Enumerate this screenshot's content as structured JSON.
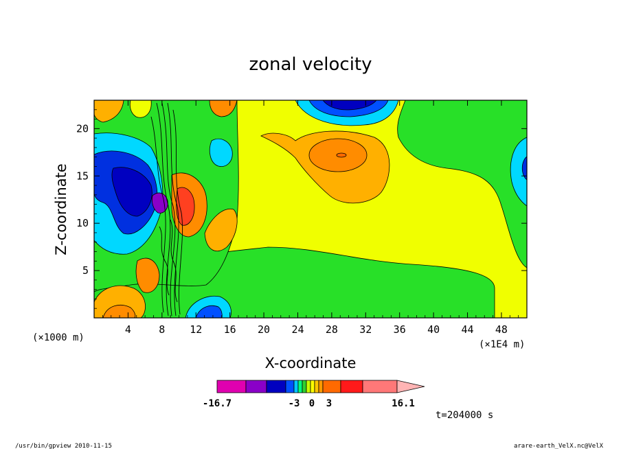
{
  "chart_data": {
    "type": "heatmap",
    "title": "zonal velocity",
    "xlabel": "X-coordinate",
    "ylabel": "Z-coordinate",
    "x_unit_left": "(×1000 m)",
    "x_unit_right": "(×1E4 m)",
    "xlim": [
      0,
      51
    ],
    "ylim": [
      0,
      23
    ],
    "x_ticks": [
      4,
      8,
      12,
      16,
      20,
      24,
      28,
      32,
      36,
      40,
      44,
      48
    ],
    "y_ticks": [
      5,
      10,
      15,
      20
    ],
    "x_tick_labels": [
      "4",
      "8",
      "12",
      "16",
      "20",
      "24",
      "28",
      "32",
      "36",
      "40",
      "44",
      "48"
    ],
    "y_tick_labels": [
      "5",
      "10",
      "15",
      "20"
    ],
    "colorbar": {
      "min_label": "-16.7",
      "max_label": "16.1",
      "mid_labels": [
        "-3",
        "0",
        "3"
      ],
      "colors": [
        "#e000b0",
        "#8a00c8",
        "#0000c0",
        "#0050ff",
        "#00c8ff",
        "#00ff7f",
        "#30d030",
        "#c8ff00",
        "#ffff00",
        "#ffc800",
        "#ff9a00",
        "#ff6a00",
        "#ff1a1a",
        "#ff7878",
        "#ffb4b4"
      ]
    },
    "time_label": "t=204000 s",
    "regions": [
      {
        "name": "background",
        "value": 1,
        "color": "#f0ff00"
      },
      {
        "name": "lower green band",
        "value": -1,
        "color": "#28e028"
      },
      {
        "name": "upper right green",
        "value": -1,
        "color": "#28e028"
      },
      {
        "name": "orange blob upper",
        "value": 3,
        "color": "#ffb000"
      },
      {
        "name": "orange core",
        "value": 5,
        "color": "#ff8c00"
      },
      {
        "name": "top blue jet",
        "value": -10,
        "color": "#0000c0"
      },
      {
        "name": "left blue",
        "value": -8,
        "color": "#0000c0"
      },
      {
        "name": "left magenta core",
        "value": -14,
        "color": "#8a00c8"
      },
      {
        "name": "red core",
        "value": 9,
        "color": "#ff4020"
      }
    ]
  },
  "footer": {
    "left": "/usr/bin/gpview   2010-11-15",
    "right": "arare-earth_VelX.nc@VelX"
  }
}
